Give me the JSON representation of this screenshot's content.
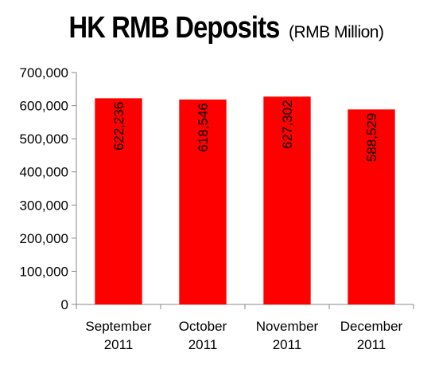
{
  "title": "HK RMB Deposits",
  "subtitle": "(RMB Million)",
  "chart_data": {
    "type": "bar",
    "title": "HK RMB Deposits",
    "subtitle": "(RMB Million)",
    "categories": [
      [
        "September",
        "2011"
      ],
      [
        "October",
        "2011"
      ],
      [
        "November",
        "2011"
      ],
      [
        "December",
        "2011"
      ]
    ],
    "values": [
      622236,
      618546,
      627302,
      588529
    ],
    "data_labels": [
      "622,236",
      "618,546",
      "627,302",
      "588,529"
    ],
    "ylim": [
      0,
      700000
    ],
    "yticks": [
      0,
      100000,
      200000,
      300000,
      400000,
      500000,
      600000,
      700000
    ],
    "ytick_labels": [
      "0",
      "100,000",
      "200,000",
      "300,000",
      "400,000",
      "500,000",
      "600,000",
      "700,000"
    ],
    "xlabel": "",
    "ylabel": "",
    "grid": false,
    "legend": "none",
    "bar_color": "#ff0000"
  }
}
